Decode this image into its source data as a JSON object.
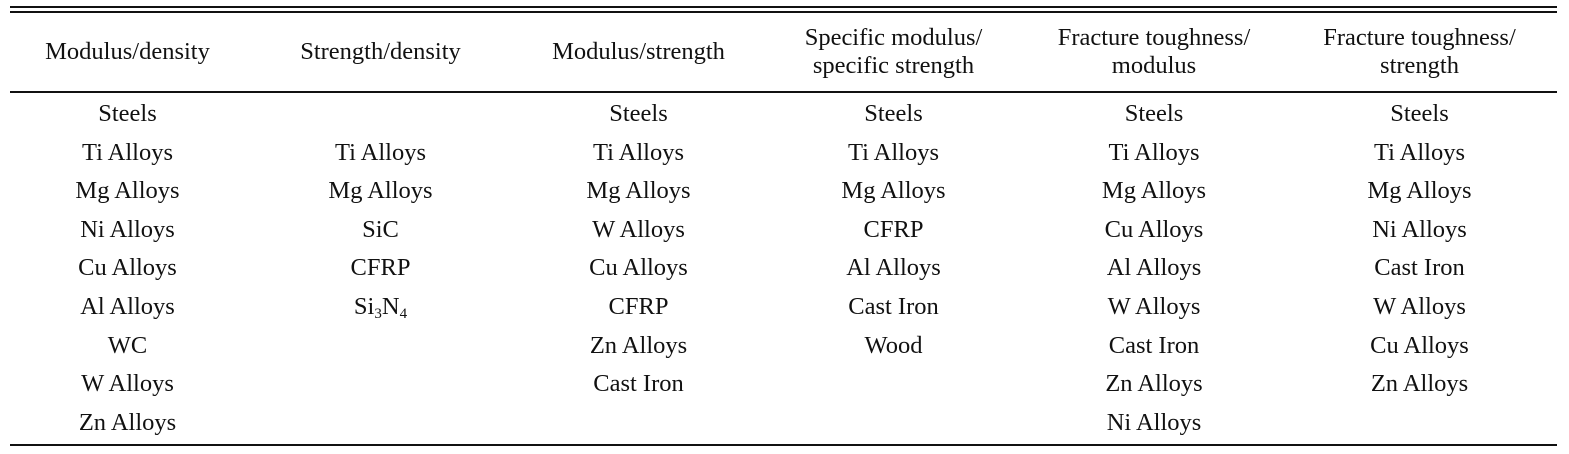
{
  "table": {
    "headers": [
      "Modulus/density",
      "Strength/density",
      "Modulus/strength",
      "Specific modulus/\nspecific strength",
      "Fracture toughness/\nmodulus",
      "Fracture toughness/\nstrength"
    ],
    "columns": [
      [
        "Steels",
        "Ti Alloys",
        "Mg Alloys",
        "Ni Alloys",
        "Cu Alloys",
        "Al Alloys",
        "WC",
        "W Alloys",
        "Zn Alloys"
      ],
      [
        "",
        "Ti Alloys",
        "Mg Alloys",
        "SiC",
        "CFRP",
        "Si3N4"
      ],
      [
        "Steels",
        "Ti Alloys",
        "Mg Alloys",
        "W Alloys",
        "Cu Alloys",
        "CFRP",
        "Zn Alloys",
        "Cast Iron"
      ],
      [
        "Steels",
        "Ti Alloys",
        "Mg Alloys",
        "CFRP",
        "Al Alloys",
        "Cast Iron",
        "Wood"
      ],
      [
        "Steels",
        "Ti Alloys",
        "Mg Alloys",
        "Cu Alloys",
        "Al Alloys",
        "W Alloys",
        "Cast Iron",
        "Zn Alloys",
        "Ni Alloys"
      ],
      [
        "Steels",
        "Ti Alloys",
        "Mg Alloys",
        "Ni Alloys",
        "Cast Iron",
        "W Alloys",
        "Cu Alloys",
        "Zn Alloys"
      ]
    ]
  }
}
